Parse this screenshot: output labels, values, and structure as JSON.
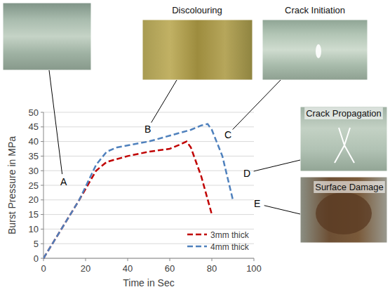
{
  "chart_data": {
    "type": "line",
    "x_label": "Time in Sec",
    "y_label": "Burst Pressure in MPa",
    "xlim": [
      0,
      100
    ],
    "xticks": [
      0,
      20,
      40,
      60,
      80,
      100
    ],
    "ylim": [
      0,
      50
    ],
    "yticks": [
      0,
      5,
      10,
      15,
      20,
      25,
      30,
      35,
      40,
      45,
      50
    ],
    "grid": true,
    "legend": "lower right",
    "series": [
      {
        "name": "3mm thick",
        "color": "#c00000",
        "line_style": "dashed",
        "x": [
          0,
          17,
          25,
          30,
          40,
          50,
          60,
          65,
          68,
          70,
          75,
          80
        ],
        "values": [
          0,
          20,
          30,
          33,
          35,
          36.5,
          37.5,
          39,
          40,
          38,
          28,
          15
        ]
      },
      {
        "name": "4mm thick",
        "color": "#4f81bd",
        "line_style": "dashed",
        "x": [
          0,
          17,
          25,
          30,
          35,
          50,
          60,
          70,
          75,
          78,
          80,
          85,
          90
        ],
        "values": [
          0,
          20,
          32,
          36.5,
          38,
          40,
          42,
          44,
          45.5,
          46,
          44,
          35,
          20
        ]
      }
    ],
    "annotations": [
      {
        "label": "A",
        "x": 8,
        "y": 25
      },
      {
        "label": "B",
        "x": 48,
        "y": 43,
        "caption": "Discolouring"
      },
      {
        "label": "C",
        "x": 86,
        "y": 41,
        "caption": "Crack Initiation"
      },
      {
        "label": "D",
        "x": 95,
        "y": 28,
        "caption": "Crack Propagation"
      },
      {
        "label": "E",
        "x": 100,
        "y": 17.5,
        "caption": "Surface Damage"
      }
    ]
  }
}
